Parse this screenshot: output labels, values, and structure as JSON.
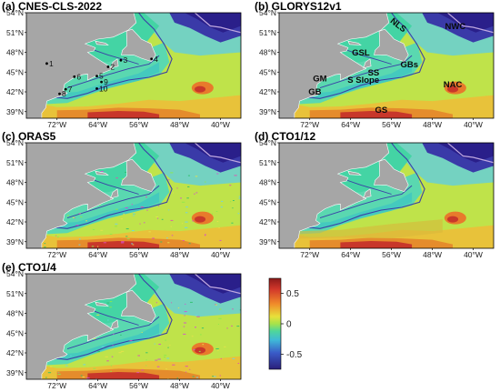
{
  "panels": [
    {
      "id": "a",
      "title": "(a) CNES-CLS-2022"
    },
    {
      "id": "b",
      "title": "(b) GLORYS12v1"
    },
    {
      "id": "c",
      "title": "(c) ORAS5"
    },
    {
      "id": "d",
      "title": "(d) CTO1/12"
    },
    {
      "id": "e",
      "title": "(e) CTO1/4"
    }
  ],
  "lat_ticks": [
    "54°N",
    "51°N",
    "48°N",
    "45°N",
    "42°N",
    "39°N"
  ],
  "lon_ticks": [
    "72°W",
    "64°W",
    "56°W",
    "48°W",
    "40°W"
  ],
  "region_labels": [
    "NLS",
    "NWC",
    "GSL",
    "GBs",
    "SS",
    "S Slope",
    "GM",
    "GB",
    "NAC",
    "GS"
  ],
  "station_labels": [
    "1",
    "2",
    "3",
    "4",
    "5",
    "6",
    "7",
    "8",
    "9",
    "10"
  ],
  "colorbar": {
    "ticks": [
      "0.5",
      "0",
      "-0.5"
    ],
    "tick_values": [
      0.5,
      0,
      -0.5
    ],
    "range": [
      -0.75,
      0.75
    ]
  },
  "colors": {
    "land": "#a6a6a6",
    "shelf": "#44d4a4",
    "open_ocean": "#bfe34a",
    "negative": "#2a1f8a",
    "positive": "#c8372a",
    "contour": "#3b3fa6"
  }
}
